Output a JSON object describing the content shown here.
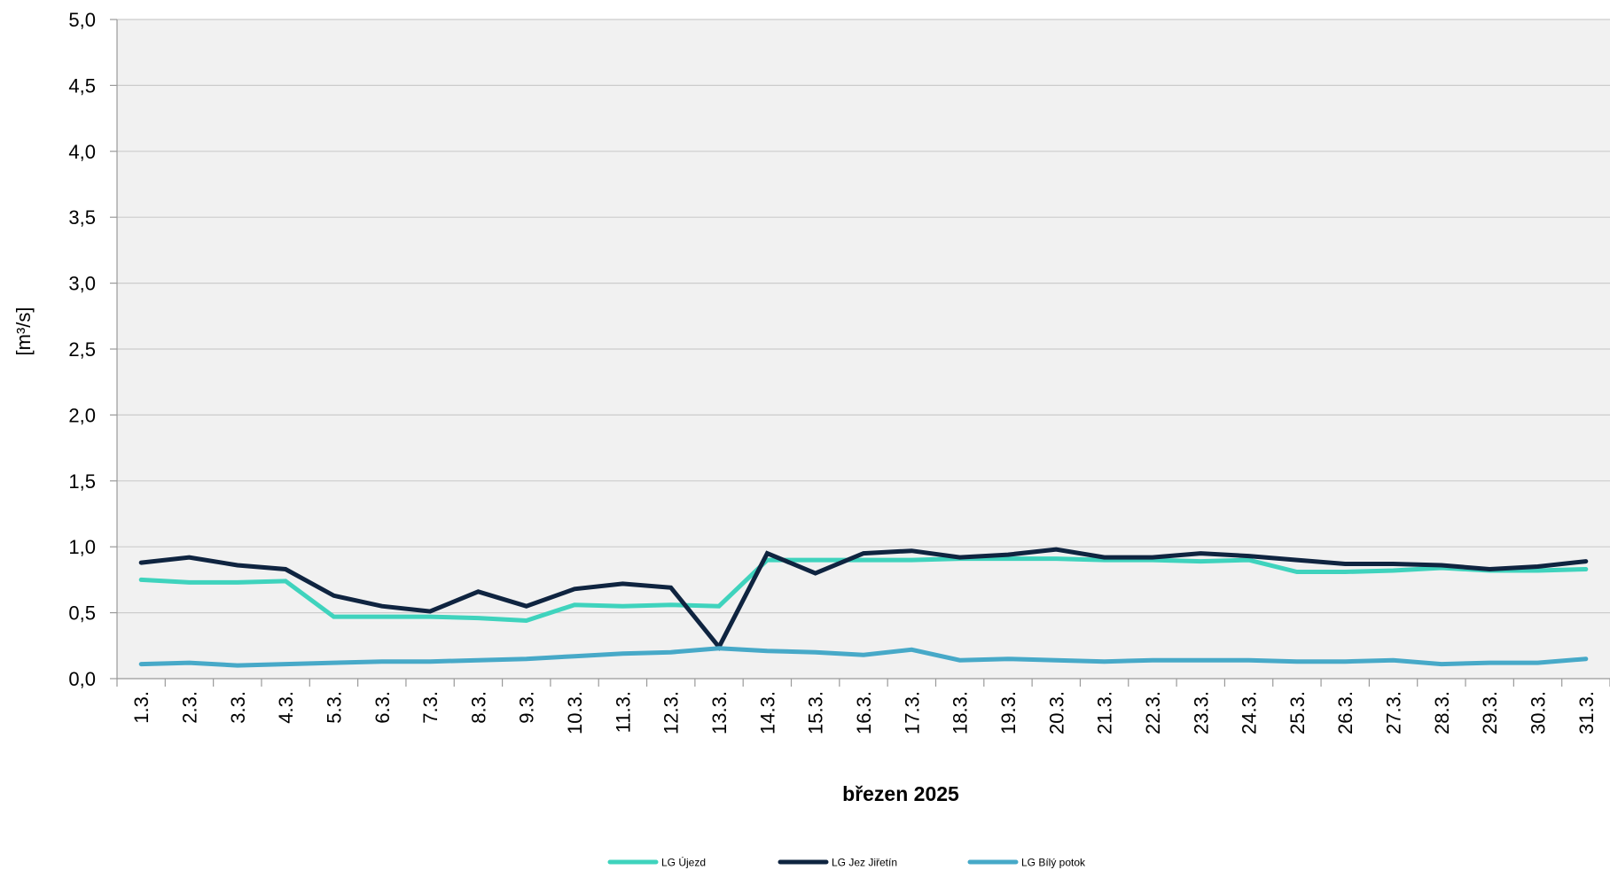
{
  "chart_data": {
    "type": "line",
    "title": "",
    "xlabel": "březen 2025",
    "ylabel": "[m³/s]",
    "ylim": [
      0,
      5
    ],
    "yticks": [
      "0,0",
      "0,5",
      "1,0",
      "1,5",
      "2,0",
      "2,5",
      "3,0",
      "3,5",
      "4,0",
      "4,5",
      "5,0"
    ],
    "ytick_values": [
      0,
      0.5,
      1,
      1.5,
      2,
      2.5,
      3,
      3.5,
      4,
      4.5,
      5
    ],
    "grid": true,
    "legend_position": "bottom",
    "categories": [
      "1.3.",
      "2.3.",
      "3.3.",
      "4.3.",
      "5.3.",
      "6.3.",
      "7.3.",
      "8.3.",
      "9.3.",
      "10.3.",
      "11.3.",
      "12.3.",
      "13.3.",
      "14.3.",
      "15.3.",
      "16.3.",
      "17.3.",
      "18.3.",
      "19.3.",
      "20.3.",
      "21.3.",
      "22.3.",
      "23.3.",
      "24.3.",
      "25.3.",
      "26.3.",
      "27.3.",
      "28.3.",
      "29.3.",
      "30.3.",
      "31.3."
    ],
    "series": [
      {
        "name": "LG Újezd",
        "color": "#3fd3bd",
        "values": [
          0.75,
          0.73,
          0.73,
          0.74,
          0.47,
          0.47,
          0.47,
          0.46,
          0.44,
          0.56,
          0.55,
          0.56,
          0.55,
          0.9,
          0.9,
          0.9,
          0.9,
          0.91,
          0.91,
          0.91,
          0.9,
          0.9,
          0.89,
          0.9,
          0.81,
          0.81,
          0.82,
          0.84,
          0.82,
          0.82,
          0.83
        ]
      },
      {
        "name": "LG Jez Jiřetín",
        "color": "#0f2440",
        "values": [
          0.88,
          0.92,
          0.86,
          0.83,
          0.63,
          0.55,
          0.51,
          0.66,
          0.55,
          0.68,
          0.72,
          0.69,
          0.24,
          0.95,
          0.8,
          0.95,
          0.97,
          0.92,
          0.94,
          0.98,
          0.92,
          0.92,
          0.95,
          0.93,
          0.9,
          0.87,
          0.87,
          0.86,
          0.83,
          0.85,
          0.89
        ]
      },
      {
        "name": "LG Bílý potok",
        "color": "#47a9c8",
        "values": [
          0.11,
          0.12,
          0.1,
          0.11,
          0.12,
          0.13,
          0.13,
          0.14,
          0.15,
          0.17,
          0.19,
          0.2,
          0.23,
          0.21,
          0.2,
          0.18,
          0.22,
          0.14,
          0.15,
          0.14,
          0.13,
          0.14,
          0.14,
          0.14,
          0.13,
          0.13,
          0.14,
          0.11,
          0.12,
          0.12,
          0.15
        ]
      }
    ]
  },
  "colors": {
    "plot_background": "#f1f1f1",
    "grid": "#cccccc",
    "axis": "#9a9a9a"
  }
}
